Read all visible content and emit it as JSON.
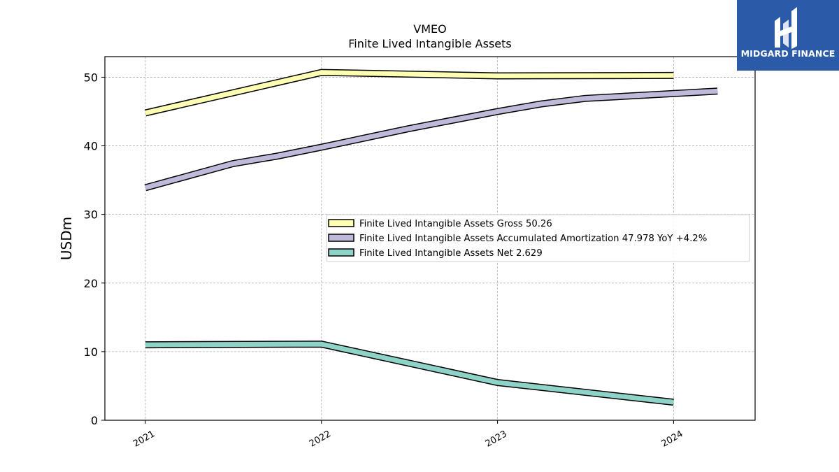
{
  "header": {
    "ticker": "VMEO",
    "title": "Finite Lived Intangible Assets"
  },
  "logo": {
    "text": "MIDGARD FINANCE",
    "background": "#2a5aa8"
  },
  "chart_data": {
    "type": "line",
    "title": "VMEO",
    "subtitle": "Finite Lived Intangible Assets",
    "xlabel": "",
    "ylabel": "USDm",
    "xlim": [
      "2020-10-09",
      "2024-06-18"
    ],
    "ylim": [
      0,
      53
    ],
    "yticks": [
      0,
      10,
      20,
      30,
      40,
      50
    ],
    "xticks": [
      "2021",
      "2022",
      "2023",
      "2024"
    ],
    "grid": true,
    "legend_position": "center-right",
    "series": [
      {
        "name": "Finite Lived Intangible Assets Gross",
        "legend_label": "Finite Lived Intangible Assets Gross  50.26",
        "color": "#ffffb3",
        "points": [
          [
            "2021-01-01",
            44.8
          ],
          [
            "2022-01-01",
            50.7
          ],
          [
            "2023-01-01",
            50.2
          ],
          [
            "2024-01-01",
            50.26
          ]
        ]
      },
      {
        "name": "Finite Lived Intangible Assets Accumulated Amortization",
        "legend_label": "Finite Lived Intangible Assets Accumulated Amortization  47.978 YoY +4.2%",
        "color": "#bebada",
        "points": [
          [
            "2021-01-01",
            33.9
          ],
          [
            "2021-07-01",
            37.4
          ],
          [
            "2021-10-01",
            38.5
          ],
          [
            "2022-01-01",
            39.8
          ],
          [
            "2022-07-01",
            42.5
          ],
          [
            "2023-01-01",
            45.0
          ],
          [
            "2023-04-01",
            46.1
          ],
          [
            "2023-07-01",
            46.9
          ],
          [
            "2024-04-01",
            47.978
          ]
        ]
      },
      {
        "name": "Finite Lived Intangible Assets Net",
        "legend_label": "Finite Lived Intangible Assets Net  2.629",
        "color": "#8dd3c7",
        "points": [
          [
            "2021-01-01",
            11.0
          ],
          [
            "2022-01-01",
            11.1
          ],
          [
            "2023-01-01",
            5.5
          ],
          [
            "2024-01-01",
            2.629
          ]
        ]
      }
    ]
  }
}
